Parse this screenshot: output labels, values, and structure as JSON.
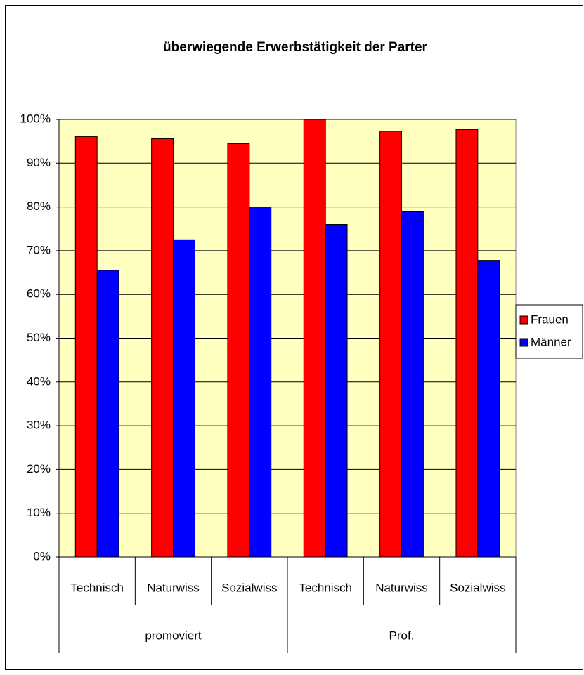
{
  "chart_data": {
    "type": "bar",
    "title": "überwiegende Erwerbstätigkeit der Parter",
    "groups": [
      {
        "name": "promoviert",
        "categories": [
          "Technisch",
          "Naturwiss",
          "Sozialwiss"
        ]
      },
      {
        "name": "Prof.",
        "categories": [
          "Technisch",
          "Naturwiss",
          "Sozialwiss"
        ]
      }
    ],
    "series": [
      {
        "name": "Frauen",
        "color": "#ff0000",
        "values": [
          96.1,
          95.6,
          94.5,
          100,
          97.3,
          97.7
        ]
      },
      {
        "name": "Männer",
        "color": "#0000ff",
        "values": [
          65.5,
          72.5,
          80,
          76,
          78.9,
          67.8
        ]
      }
    ],
    "ylim": [
      0,
      100
    ],
    "yticks": [
      {
        "value": 0,
        "label": "0%"
      },
      {
        "value": 10,
        "label": "10%"
      },
      {
        "value": 20,
        "label": "20%"
      },
      {
        "value": 30,
        "label": "30%"
      },
      {
        "value": 40,
        "label": "40%"
      },
      {
        "value": 50,
        "label": "50%"
      },
      {
        "value": 60,
        "label": "60%"
      },
      {
        "value": 70,
        "label": "70%"
      },
      {
        "value": 80,
        "label": "80%"
      },
      {
        "value": 90,
        "label": "90%"
      },
      {
        "value": 100,
        "label": "100%"
      }
    ],
    "grid": true,
    "legend": "right",
    "plot_background": "#ffffc0"
  }
}
